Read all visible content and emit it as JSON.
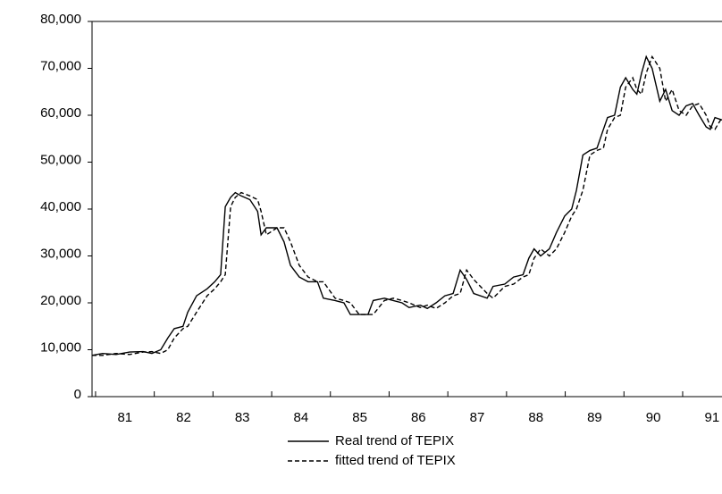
{
  "chart_data": {
    "type": "line",
    "x": [
      80.94,
      81.12,
      81.35,
      81.58,
      81.81,
      81.96,
      82.11,
      82.23,
      82.34,
      82.49,
      82.57,
      82.72,
      82.9,
      83.03,
      83.13,
      83.21,
      83.3,
      83.38,
      83.48,
      83.63,
      83.76,
      83.82,
      83.91,
      84.09,
      84.21,
      84.32,
      84.47,
      84.62,
      84.78,
      84.88,
      85.08,
      85.23,
      85.34,
      85.49,
      85.64,
      85.73,
      85.92,
      86.07,
      86.22,
      86.34,
      86.53,
      86.65,
      86.8,
      86.95,
      87.09,
      87.21,
      87.32,
      87.44,
      87.67,
      87.77,
      87.97,
      88.12,
      88.28,
      88.38,
      88.47,
      88.58,
      88.73,
      88.85,
      88.99,
      89.11,
      89.19,
      89.3,
      89.42,
      89.54,
      89.65,
      89.72,
      89.84,
      89.94,
      90.03,
      90.15,
      90.22,
      90.3,
      90.38,
      90.48,
      90.61,
      90.71,
      90.82,
      90.94,
      91.06,
      91.17,
      91.28,
      91.4,
      91.47,
      91.55,
      91.67
    ],
    "series": [
      {
        "name": "Real trend of TEPIX",
        "color": "#000000",
        "dash": false,
        "values": [
          8800,
          9200,
          9000,
          9500,
          9600,
          9200,
          10000,
          12500,
          14500,
          15000,
          18000,
          21500,
          23000,
          24500,
          26000,
          40500,
          42500,
          43500,
          42800,
          42000,
          39500,
          34500,
          36000,
          36000,
          33000,
          28000,
          25500,
          24500,
          24500,
          21000,
          20500,
          20000,
          17500,
          17500,
          17500,
          20500,
          21000,
          20500,
          20000,
          19000,
          19500,
          18800,
          20000,
          21500,
          22000,
          27000,
          25000,
          22000,
          21000,
          23500,
          24000,
          25500,
          26000,
          29500,
          31500,
          30000,
          31500,
          35000,
          38500,
          40000,
          44000,
          51500,
          52500,
          53000,
          57000,
          59500,
          60000,
          66000,
          68000,
          65500,
          64500,
          69000,
          72500,
          70000,
          63000,
          65500,
          61000,
          60000,
          62000,
          62500,
          60000,
          57500,
          57000,
          59500,
          59000
        ]
      },
      {
        "name": "fitted trend of TEPIX",
        "color": "#000000",
        "dash": true,
        "values": [
          8800,
          8800,
          9200,
          9000,
          9500,
          9600,
          9200,
          10000,
          12500,
          14500,
          15000,
          18000,
          21500,
          23000,
          24500,
          26000,
          40500,
          42500,
          43500,
          42800,
          42000,
          39500,
          34500,
          36000,
          36000,
          33000,
          28000,
          25500,
          24500,
          24500,
          21000,
          20500,
          20000,
          17500,
          17500,
          17500,
          20500,
          21000,
          20500,
          20000,
          19000,
          19500,
          18800,
          20000,
          21500,
          22000,
          27000,
          25000,
          22000,
          21000,
          23500,
          24000,
          25500,
          26000,
          29500,
          31500,
          30000,
          31500,
          35000,
          38500,
          40000,
          44000,
          51500,
          52500,
          53000,
          57000,
          59500,
          60000,
          66000,
          68000,
          65500,
          64500,
          69000,
          72500,
          70000,
          63000,
          65500,
          61000,
          60000,
          62000,
          62500,
          60000,
          57500,
          57000,
          59500
        ]
      }
    ],
    "xlim": [
      80.94,
      91.67
    ],
    "xticks": [
      {
        "value": 81.5,
        "label": "81"
      },
      {
        "value": 82.5,
        "label": "82"
      },
      {
        "value": 83.5,
        "label": "83"
      },
      {
        "value": 84.5,
        "label": "84"
      },
      {
        "value": 85.5,
        "label": "85"
      },
      {
        "value": 86.5,
        "label": "86"
      },
      {
        "value": 87.5,
        "label": "87"
      },
      {
        "value": 88.5,
        "label": "88"
      },
      {
        "value": 89.5,
        "label": "89"
      },
      {
        "value": 90.5,
        "label": "90"
      },
      {
        "value": 91.5,
        "label": "91"
      }
    ],
    "ylim": [
      0,
      80000
    ],
    "yticks": [
      0,
      {
        "value": 10000,
        "label": "10,000"
      },
      {
        "value": 20000,
        "label": "20,000"
      },
      {
        "value": 30000,
        "label": "30,000"
      },
      {
        "value": 40000,
        "label": "40,000"
      },
      {
        "value": 50000,
        "label": "50,000"
      },
      {
        "value": 60000,
        "label": "60,000"
      },
      {
        "value": 70000,
        "label": "70,000"
      },
      {
        "value": 80000,
        "label": "80,000"
      }
    ],
    "grid": false
  }
}
